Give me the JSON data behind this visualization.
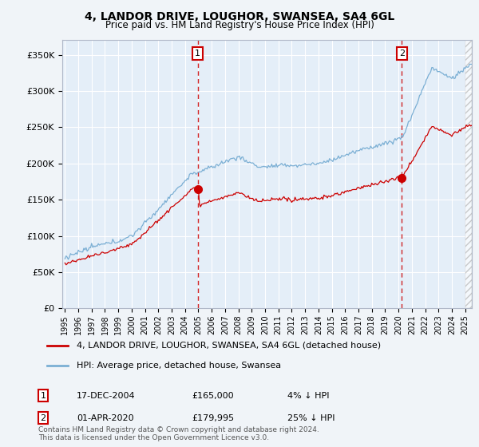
{
  "title1": "4, LANDOR DRIVE, LOUGHOR, SWANSEA, SA4 6GL",
  "title2": "Price paid vs. HM Land Registry's House Price Index (HPI)",
  "legend_line1": "4, LANDOR DRIVE, LOUGHOR, SWANSEA, SA4 6GL (detached house)",
  "legend_line2": "HPI: Average price, detached house, Swansea",
  "footnote": "Contains HM Land Registry data © Crown copyright and database right 2024.\nThis data is licensed under the Open Government Licence v3.0.",
  "sale1_label": "1",
  "sale1_date": "17-DEC-2004",
  "sale1_price": 165000,
  "sale1_hpi": "4% ↓ HPI",
  "sale2_label": "2",
  "sale2_date": "01-APR-2020",
  "sale2_price": 179995,
  "sale2_hpi": "25% ↓ HPI",
  "sale1_x": 2004.96,
  "sale2_x": 2020.25,
  "hpi_color": "#7bafd4",
  "sale_color": "#cc0000",
  "background_color": "#f0f4f8",
  "plot_bg": "#e4eef8",
  "grid_color": "#ffffff",
  "vline_color": "#cc0000",
  "ylim": [
    0,
    370000
  ],
  "xlim": [
    1994.8,
    2025.5
  ]
}
